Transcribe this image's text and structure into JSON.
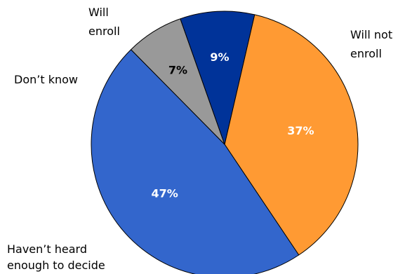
{
  "chart_data": {
    "type": "pie",
    "title": "",
    "unit": "%",
    "slices": [
      {
        "label_lines": [
          "Will not",
          "enroll"
        ],
        "value": 37,
        "value_label": "37%",
        "color": "#FF9A33",
        "text_color": "#FFFFFF"
      },
      {
        "label_lines": [
          "Haven’t heard",
          "enough to decide"
        ],
        "value": 47,
        "value_label": "47%",
        "color": "#3366CC",
        "text_color": "#FFFFFF"
      },
      {
        "label_lines": [
          "Don’t know"
        ],
        "value": 7,
        "value_label": "7%",
        "color": "#999999",
        "text_color": "#000000"
      },
      {
        "label_lines": [
          "Will",
          "enroll"
        ],
        "value": 9,
        "value_label": "9%",
        "color": "#003399",
        "text_color": "#FFFFFF"
      }
    ],
    "start_angle_deg": 13,
    "direction": "clockwise",
    "legend": "none",
    "labels": "outside category names, inside percentage values"
  }
}
